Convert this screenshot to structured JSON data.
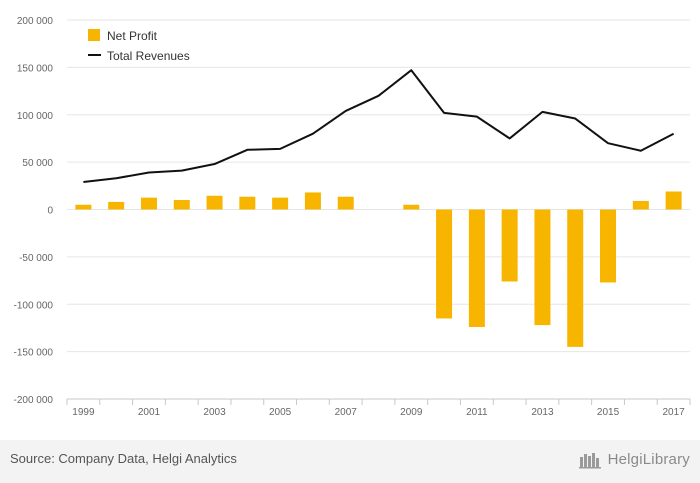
{
  "chart_data": {
    "type": "bar",
    "x": [
      1999,
      2000,
      2001,
      2002,
      2003,
      2004,
      2005,
      2006,
      2007,
      2008,
      2009,
      2010,
      2011,
      2012,
      2013,
      2014,
      2015,
      2016,
      2017
    ],
    "x_tick_labels": [
      "1999",
      "2001",
      "2003",
      "2005",
      "2007",
      "2009",
      "2011",
      "2013",
      "2015",
      "2017"
    ],
    "series": [
      {
        "name": "Net Profit",
        "type": "bar",
        "color": "#f7b500",
        "values": [
          5000,
          8000,
          12500,
          10000,
          14500,
          13500,
          12500,
          18000,
          13500,
          0,
          5000,
          -115000,
          -124000,
          -76000,
          -122000,
          -145000,
          -77000,
          9000,
          19000
        ]
      },
      {
        "name": "Total Revenues",
        "type": "line",
        "color": "#111111",
        "values": [
          29000,
          33000,
          39000,
          41000,
          48000,
          63000,
          64000,
          80000,
          104000,
          120000,
          147000,
          102000,
          98000,
          75000,
          103000,
          96000,
          70000,
          62000,
          80000
        ]
      }
    ],
    "y_ticks": [
      "200 000",
      "150 000",
      "100 000",
      "50 000",
      "0",
      "-50 000",
      "-100 000",
      "-150 000",
      "-200 000"
    ],
    "ylim": [
      -200000,
      200000
    ],
    "grid": true,
    "legend_position": "top-left"
  },
  "footer": {
    "source": "Source: Company Data, Helgi Analytics",
    "brand": "HelgiLibrary"
  }
}
